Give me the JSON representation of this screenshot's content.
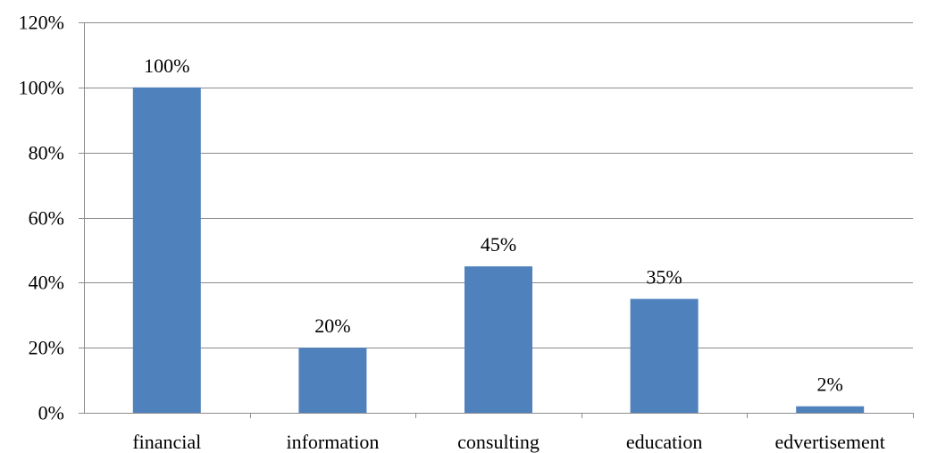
{
  "chart_data": {
    "type": "bar",
    "categories": [
      "financial",
      "information",
      "consulting",
      "education",
      "edvertisement"
    ],
    "values": [
      100,
      20,
      45,
      35,
      2
    ],
    "data_labels": [
      "100%",
      "20%",
      "45%",
      "35%",
      "2%"
    ],
    "yticks": [
      0,
      20,
      40,
      60,
      80,
      100,
      120
    ],
    "ytick_labels": [
      "0%",
      "20%",
      "40%",
      "60%",
      "80%",
      "100%",
      "120%"
    ],
    "ylim": [
      0,
      120
    ],
    "grid": true,
    "legend": "none",
    "title": "",
    "xlabel": "",
    "ylabel": "",
    "colors": {
      "bar": "#4f81bd",
      "grid": "#8c8c8c",
      "axis": "#8c8c8c"
    }
  }
}
